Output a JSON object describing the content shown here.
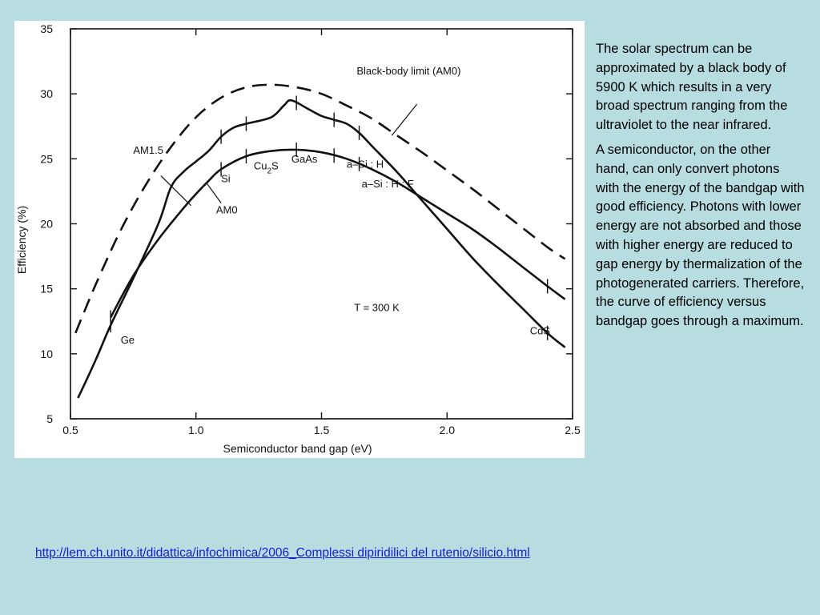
{
  "slide": {
    "paragraphs": [
      "The solar spectrum can be approximated by a black body of 5900 K which results in a very broad spectrum ranging from the ultraviolet to the near infrared.",
      "A semiconductor, on the other hand, can only convert photons with the energy of the bandgap with good efficiency. Photons with lower energy are not absorbed and those with higher energy are reduced to gap energy by thermalization of the photogenerated carriers. Therefore, the curve of efficiency versus bandgap goes through a maximum."
    ],
    "link": "http://lem.ch.unito.it/didattica/infochimica/2006_Complessi dipiridilici del rutenio/silicio.html"
  },
  "chart_data": {
    "type": "line",
    "title": "",
    "xlabel": "Semiconductor band gap (eV)",
    "ylabel": "Efficiency (%)",
    "xlim": [
      0.5,
      2.5
    ],
    "ylim": [
      5,
      35
    ],
    "xticks": [
      "0.5",
      "1.0",
      "1.5",
      "2.0",
      "2.5"
    ],
    "yticks": [
      "5",
      "10",
      "15",
      "20",
      "25",
      "30",
      "35"
    ],
    "grid": false,
    "series": [
      {
        "name": "Black-body limit (AM0)",
        "style": "dashed",
        "x": [
          0.52,
          0.6,
          0.7,
          0.8,
          0.9,
          1.0,
          1.1,
          1.2,
          1.3,
          1.4,
          1.5,
          1.6,
          1.7,
          1.8,
          1.9,
          2.0,
          2.1,
          2.2,
          2.3,
          2.4,
          2.47
        ],
        "y": [
          11.6,
          15.3,
          19.5,
          23.0,
          25.9,
          28.2,
          29.7,
          30.5,
          30.7,
          30.5,
          30.0,
          29.1,
          28.1,
          26.8,
          25.5,
          24.1,
          22.7,
          21.2,
          19.7,
          18.2,
          17.3
        ]
      },
      {
        "name": "AM1.5",
        "style": "solid",
        "x": [
          0.53,
          0.6,
          0.66,
          0.75,
          0.85,
          0.9,
          0.95,
          1.0,
          1.05,
          1.1,
          1.15,
          1.2,
          1.3,
          1.35,
          1.38,
          1.45,
          1.5,
          1.55,
          1.6,
          1.65,
          1.7,
          1.8,
          1.9,
          2.0,
          2.1,
          2.2,
          2.3,
          2.4,
          2.47
        ],
        "y": [
          6.6,
          9.5,
          12.2,
          15.8,
          20.0,
          22.8,
          24.0,
          24.8,
          25.6,
          26.7,
          27.4,
          27.7,
          28.2,
          29.1,
          29.5,
          28.8,
          28.3,
          28.0,
          27.7,
          27.0,
          26.0,
          24.0,
          21.8,
          19.6,
          17.4,
          15.4,
          13.5,
          11.6,
          10.5
        ]
      },
      {
        "name": "AM0",
        "style": "solid",
        "x": [
          0.66,
          0.75,
          0.85,
          0.95,
          1.0,
          1.05,
          1.1,
          1.2,
          1.3,
          1.4,
          1.5,
          1.6,
          1.7,
          1.8,
          1.9,
          2.0,
          2.1,
          2.2,
          2.3,
          2.4,
          2.47
        ],
        "y": [
          12.8,
          16.0,
          18.8,
          21.2,
          22.3,
          23.3,
          24.2,
          25.2,
          25.6,
          25.7,
          25.5,
          25.0,
          24.2,
          23.2,
          22.0,
          20.8,
          19.6,
          18.2,
          16.7,
          15.2,
          14.2
        ]
      }
    ],
    "annotations": [
      {
        "text": "Black-body limit (AM0)",
        "x": 1.64,
        "y": 31.5
      },
      {
        "text": "AM1.5",
        "x": 0.75,
        "y": 25.4
      },
      {
        "text": "AM0",
        "x": 1.08,
        "y": 20.8
      },
      {
        "text": "T = 300 K",
        "x": 1.63,
        "y": 13.3
      },
      {
        "text": "Ge",
        "x": 0.7,
        "y": 10.8
      },
      {
        "text": "Si",
        "x": 1.1,
        "y": 23.2
      },
      {
        "text": "Cu",
        "sub": "2",
        "text2": "S",
        "x": 1.23,
        "y": 24.2
      },
      {
        "text": "GaAs",
        "x": 1.38,
        "y": 24.7
      },
      {
        "text": "a–Si : H",
        "x": 1.6,
        "y": 24.3
      },
      {
        "text": "a–Si : H : F",
        "x": 1.66,
        "y": 22.8
      },
      {
        "text": "CdS",
        "x": 2.33,
        "y": 11.5
      }
    ],
    "material_markers": [
      {
        "name": "Ge",
        "x": 0.66
      },
      {
        "name": "Si",
        "x": 1.1
      },
      {
        "name": "Cu2S",
        "x": 1.2
      },
      {
        "name": "GaAs",
        "x": 1.4
      },
      {
        "name": "a-Si:H",
        "x": 1.55
      },
      {
        "name": "a-Si:H:F",
        "x": 1.65
      },
      {
        "name": "CdS",
        "x": 2.4
      }
    ]
  }
}
